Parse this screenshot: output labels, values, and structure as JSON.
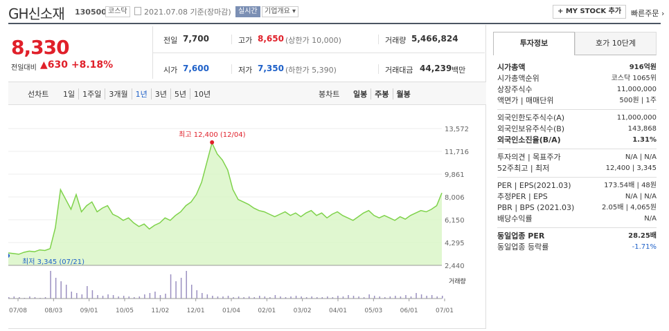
{
  "header": {
    "title": "GH신소재",
    "code": "130500",
    "market": "코스닥",
    "date": "2021.07.08 기준(장마감)",
    "realtime": "실시간",
    "company": "기업개요",
    "mystock": "+ MY STOCK 추가",
    "quick": "빠른주문"
  },
  "quote": {
    "price": "8,330",
    "change_label": "전일대비",
    "change_arrow": "▲",
    "change": "630",
    "change_pct": "+8.18%",
    "prev_label": "전일",
    "prev": "7,700",
    "high_label": "고가",
    "high": "8,650",
    "upper_limit": "(상한가 10,000)",
    "volume_label": "거래량",
    "volume": "5,466,824",
    "open_label": "시가",
    "open": "7,600",
    "low_label": "저가",
    "low": "7,350",
    "lower_limit": "(하한가 5,390)",
    "amount_label": "거래대금",
    "amount": "44,239",
    "amount_unit": "백만"
  },
  "toolbar": {
    "line_label": "선차트",
    "periods": [
      "1일",
      "1주일",
      "3개월",
      "1년",
      "3년",
      "5년",
      "10년"
    ],
    "selected": "1년",
    "candle_label": "봉차트",
    "candles": [
      "일봉",
      "주봉",
      "월봉"
    ]
  },
  "chart_data": {
    "type": "line",
    "yticks": [
      "13,572",
      "11,716",
      "9,861",
      "8,006",
      "6,150",
      "4,295",
      "2,440"
    ],
    "ylim": [
      2440,
      13572
    ],
    "xticks": [
      "07/08",
      "08/03",
      "09/01",
      "10/05",
      "11/02",
      "12/01",
      "01/04",
      "02/01",
      "03/02",
      "04/01",
      "05/03",
      "06/01",
      "07/01"
    ],
    "max_label": "최고 12,400 (12/04)",
    "min_label": "최저 3,345 (07/21)",
    "volume_legend": "거래량",
    "series": [
      {
        "values": [
          3450,
          3400,
          3345,
          3500,
          3600,
          3550,
          3700,
          3650,
          3800,
          5500,
          8600,
          7800,
          7000,
          8200,
          6800,
          7300,
          7600,
          6800,
          7100,
          7300,
          6600,
          6400,
          6100,
          6300,
          5900,
          5600,
          5800,
          5400,
          5700,
          5900,
          6300,
          6100,
          6500,
          6800,
          7300,
          7600,
          8200,
          9200,
          10800,
          12400,
          11500,
          11000,
          10200,
          8600,
          7800,
          7600,
          7400,
          7100,
          6900,
          6800,
          6600,
          6400,
          6600,
          6800,
          6500,
          6700,
          6400,
          6700,
          6900,
          6500,
          6700,
          6300,
          6600,
          6800,
          6500,
          6300,
          6100,
          6400,
          6700,
          6900,
          6500,
          6300,
          6500,
          6300,
          6100,
          6400,
          6200,
          6500,
          6700,
          6900,
          6800,
          7000,
          7300,
          8330
        ]
      }
    ]
  },
  "sidebar": {
    "tab1": "투자정보",
    "tab2": "호가 10단계",
    "rows": [
      {
        "label": "시가총액",
        "value": "916억원",
        "bold": true
      },
      {
        "label": "시가총액순위",
        "value": "코스닥 1065위"
      },
      {
        "label": "상장주식수",
        "value": "11,000,000"
      },
      {
        "label": "액면가 | 매매단위",
        "value": "500원 | 1주"
      },
      {
        "label": "외국인한도주식수(A)",
        "value": "11,000,000"
      },
      {
        "label": "외국인보유주식수(B)",
        "value": "143,868"
      },
      {
        "label": "외국인소진율(B/A)",
        "value": "1.31%",
        "bold": true
      },
      {
        "label": "투자의견 | 목표주가",
        "value": "N/A | N/A"
      },
      {
        "label": "52주최고 | 최저",
        "value": "12,400 | 3,345"
      },
      {
        "label": "PER | EPS(2021.03)",
        "value": "173.54배 | 48원"
      },
      {
        "label": "추정PER | EPS",
        "value": "N/A | N/A"
      },
      {
        "label": "PBR | BPS (2021.03)",
        "value": "2.05배 | 4,065원"
      },
      {
        "label": "배당수익률",
        "value": "N/A"
      },
      {
        "label": "동일업종 PER",
        "value": "28.25배",
        "bold": true
      },
      {
        "label": "동일업종 등락률",
        "value": "-1.71%",
        "blue": true
      }
    ]
  }
}
